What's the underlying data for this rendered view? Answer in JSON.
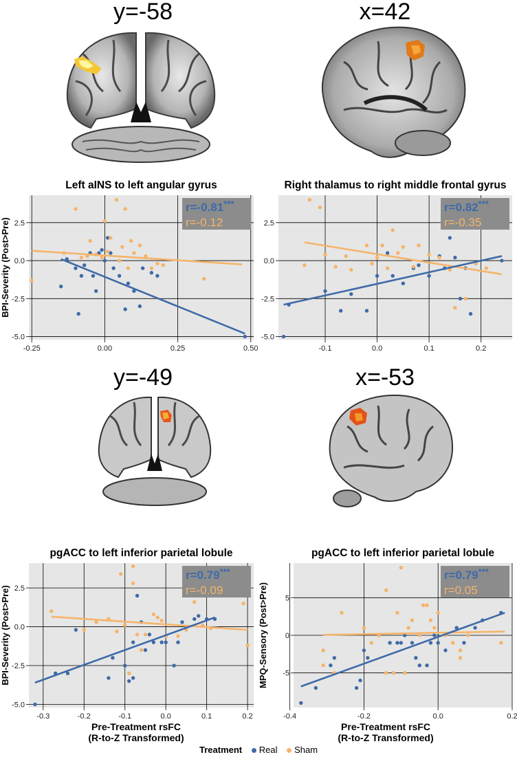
{
  "brain_labels": [
    "y=-58",
    "x=42",
    "y=-49",
    "x=-53"
  ],
  "colors": {
    "real": "#3e6aa8",
    "sham": "#f5b46a",
    "panel": "#e6e6e6",
    "stat_box": "#8c8c8c"
  },
  "xlabel_shared": [
    "Pre-Treatment rsFC",
    "(R-to-Z Transformed)"
  ],
  "legend": {
    "title": "Treatment",
    "items": [
      "Real",
      "Sham"
    ]
  },
  "chart_data": [
    {
      "type": "scatter",
      "title": "Left aINS to left angular gyrus",
      "ylabel": "BPI-Severity (Post>Pre)",
      "xlabel": "",
      "xlim": [
        -0.26,
        0.51
      ],
      "ylim": [
        -5.2,
        4.3
      ],
      "xticks": [
        -0.25,
        0,
        0.25,
        0.5
      ],
      "xtick_labels": [
        "-0.25",
        "0.00",
        "0.25",
        "0.50"
      ],
      "yticks": [
        -5,
        -2.5,
        0,
        2.5
      ],
      "ytick_labels": [
        "-5.0",
        "-2.5",
        "0.0",
        "2.5"
      ],
      "stats": [
        {
          "text": "r=-0.81",
          "stars": "***",
          "series": "Real"
        },
        {
          "text": "r=-0.12",
          "stars": "",
          "series": "Sham"
        }
      ],
      "series": [
        {
          "name": "Real",
          "points": [
            [
              -0.15,
              -1.7
            ],
            [
              -0.13,
              0.1
            ],
            [
              -0.1,
              -0.5
            ],
            [
              -0.09,
              -3.5
            ],
            [
              -0.08,
              -1.0
            ],
            [
              -0.07,
              -0.3
            ],
            [
              -0.05,
              0.5
            ],
            [
              -0.04,
              -1.0
            ],
            [
              -0.03,
              -2.0
            ],
            [
              -0.02,
              0.5
            ],
            [
              -0.01,
              0.7
            ],
            [
              0.0,
              0.0
            ],
            [
              0.01,
              1.5
            ],
            [
              0.02,
              0.5
            ],
            [
              0.03,
              -0.5
            ],
            [
              0.05,
              -1.0
            ],
            [
              0.07,
              -3.2
            ],
            [
              0.08,
              -1.5
            ],
            [
              0.1,
              -2.0
            ],
            [
              0.12,
              -3.0
            ],
            [
              0.13,
              -0.5
            ],
            [
              0.16,
              -0.8
            ],
            [
              0.18,
              -1.0
            ],
            [
              0.48,
              -5.0
            ]
          ],
          "fit": [
            [
              -0.15,
              0.1
            ],
            [
              0.48,
              -4.8
            ]
          ]
        },
        {
          "name": "Sham",
          "points": [
            [
              -0.25,
              -1.3
            ],
            [
              -0.14,
              0.5
            ],
            [
              -0.1,
              3.4
            ],
            [
              -0.08,
              0.2
            ],
            [
              -0.06,
              0.3
            ],
            [
              -0.05,
              1.3
            ],
            [
              -0.03,
              0.4
            ],
            [
              -0.01,
              0.2
            ],
            [
              0.0,
              2.6
            ],
            [
              0.01,
              0.6
            ],
            [
              0.02,
              1.5
            ],
            [
              0.04,
              4.0
            ],
            [
              0.05,
              0.0
            ],
            [
              0.06,
              0.9
            ],
            [
              0.07,
              3.4
            ],
            [
              0.08,
              -0.5
            ],
            [
              0.09,
              1.3
            ],
            [
              0.1,
              0.5
            ],
            [
              0.12,
              1.0
            ],
            [
              0.14,
              0.3
            ],
            [
              0.16,
              -0.5
            ],
            [
              0.18,
              -0.2
            ],
            [
              0.2,
              -0.3
            ],
            [
              0.34,
              -1.2
            ]
          ],
          "fit": [
            [
              -0.25,
              0.65
            ],
            [
              0.47,
              -0.25
            ]
          ]
        }
      ]
    },
    {
      "type": "scatter",
      "title": "Right thalamus to right middle frontal gyrus",
      "ylabel": "",
      "xlabel": "",
      "xlim": [
        -0.19,
        0.26
      ],
      "ylim": [
        -5.2,
        4.3
      ],
      "xticks": [
        -0.1,
        0,
        0.1,
        0.2
      ],
      "xtick_labels": [
        "-0.1",
        "0.0",
        "0.1",
        "0.2"
      ],
      "yticks": [
        -5,
        -2.5,
        0,
        2.5
      ],
      "ytick_labels": [
        "-5.0",
        "-2.5",
        "0.0",
        "2.5"
      ],
      "stats": [
        {
          "text": "r=0.82",
          "stars": "***",
          "series": "Real"
        },
        {
          "text": "r=-0.35",
          "stars": "",
          "series": "Sham"
        }
      ],
      "series": [
        {
          "name": "Real",
          "points": [
            [
              -0.18,
              -5.0
            ],
            [
              -0.17,
              -2.9
            ],
            [
              -0.1,
              -2.0
            ],
            [
              -0.07,
              -3.3
            ],
            [
              -0.05,
              -2.2
            ],
            [
              -0.02,
              -3.3
            ],
            [
              0.0,
              -1.0
            ],
            [
              0.02,
              0.5
            ],
            [
              0.03,
              -1.0
            ],
            [
              0.05,
              -1.5
            ],
            [
              0.07,
              -0.5
            ],
            [
              0.08,
              -0.3
            ],
            [
              0.1,
              -1.0
            ],
            [
              0.12,
              0.3
            ],
            [
              0.13,
              -0.5
            ],
            [
              0.14,
              1.5
            ],
            [
              0.15,
              0.2
            ],
            [
              0.16,
              -2.5
            ],
            [
              0.17,
              -0.5
            ],
            [
              0.18,
              -3.5
            ],
            [
              0.24,
              0.0
            ]
          ],
          "fit": [
            [
              -0.18,
              -2.9
            ],
            [
              0.24,
              0.3
            ]
          ]
        },
        {
          "name": "Sham",
          "points": [
            [
              -0.14,
              -0.3
            ],
            [
              -0.13,
              4.0
            ],
            [
              -0.11,
              3.5
            ],
            [
              -0.1,
              0.4
            ],
            [
              -0.08,
              -0.4
            ],
            [
              -0.06,
              0.3
            ],
            [
              -0.05,
              -0.6
            ],
            [
              -0.02,
              1.0
            ],
            [
              -0.01,
              -0.2
            ],
            [
              0.0,
              0.2
            ],
            [
              0.01,
              1.0
            ],
            [
              0.02,
              -0.5
            ],
            [
              0.03,
              2.0
            ],
            [
              0.04,
              0.5
            ],
            [
              0.05,
              0.9
            ],
            [
              0.07,
              -0.4
            ],
            [
              0.08,
              1.0
            ],
            [
              0.1,
              0.4
            ],
            [
              0.12,
              0.2
            ],
            [
              0.14,
              -0.6
            ],
            [
              0.15,
              -3.1
            ],
            [
              0.17,
              -2.5
            ],
            [
              0.19,
              -0.2
            ],
            [
              0.21,
              -0.5
            ]
          ],
          "fit": [
            [
              -0.14,
              1.2
            ],
            [
              0.24,
              -0.9
            ]
          ]
        }
      ]
    },
    {
      "type": "scatter",
      "title": "pgACC to left inferior parietal lobule",
      "ylabel": "BPI-Severity (Post>Pre)",
      "xlabel": "Pre-Treatment rsFC (R-to-Z Transformed)",
      "xlim": [
        -0.335,
        0.215
      ],
      "ylim": [
        -5.2,
        4.1
      ],
      "xticks": [
        -0.3,
        -0.2,
        -0.1,
        0,
        0.1,
        0.2
      ],
      "xtick_labels": [
        "-0.3",
        "-0.2",
        "-0.1",
        "0.0",
        "0.1",
        "0.2"
      ],
      "yticks": [
        -5,
        -2.5,
        0,
        2.5
      ],
      "ytick_labels": [
        "-5.0",
        "-2.5",
        "0.0",
        "2.5"
      ],
      "stats": [
        {
          "text": "r=0.79",
          "stars": "***",
          "series": "Real"
        },
        {
          "text": "r=-0.09",
          "stars": "",
          "series": "Sham"
        }
      ],
      "series": [
        {
          "name": "Real",
          "points": [
            [
              -0.32,
              -5.0
            ],
            [
              -0.27,
              -3.0
            ],
            [
              -0.24,
              -3.0
            ],
            [
              -0.22,
              -0.2
            ],
            [
              -0.14,
              -3.3
            ],
            [
              -0.13,
              -2.0
            ],
            [
              -0.1,
              -2.5
            ],
            [
              -0.09,
              -3.5
            ],
            [
              -0.08,
              -3.3
            ],
            [
              -0.08,
              -1.0
            ],
            [
              -0.07,
              2.0
            ],
            [
              -0.06,
              0.3
            ],
            [
              -0.05,
              -1.5
            ],
            [
              -0.04,
              -0.5
            ],
            [
              -0.03,
              -1.0
            ],
            [
              -0.01,
              -1.0
            ],
            [
              0.0,
              -1.0
            ],
            [
              0.02,
              -2.5
            ],
            [
              0.03,
              -1.0
            ],
            [
              0.04,
              0.3
            ],
            [
              0.05,
              0.0
            ],
            [
              0.07,
              0.5
            ],
            [
              0.08,
              0.7
            ],
            [
              0.1,
              0.5
            ],
            [
              0.12,
              0.5
            ]
          ],
          "fit": [
            [
              -0.32,
              -3.6
            ],
            [
              0.12,
              0.6
            ]
          ]
        },
        {
          "name": "Sham",
          "points": [
            [
              -0.28,
              1.0
            ],
            [
              -0.2,
              -0.2
            ],
            [
              -0.17,
              0.3
            ],
            [
              -0.14,
              0.5
            ],
            [
              -0.12,
              -0.3
            ],
            [
              -0.11,
              3.4
            ],
            [
              -0.1,
              0.1
            ],
            [
              -0.09,
              -3.0
            ],
            [
              -0.08,
              3.9
            ],
            [
              -0.08,
              2.8
            ],
            [
              -0.07,
              -0.5
            ],
            [
              -0.06,
              -1.5
            ],
            [
              -0.05,
              -0.5
            ],
            [
              -0.03,
              0.8
            ],
            [
              -0.02,
              0.6
            ],
            [
              -0.01,
              0.4
            ],
            [
              0.0,
              -0.6
            ],
            [
              0.03,
              -0.6
            ],
            [
              0.05,
              -0.2
            ],
            [
              0.07,
              1.6
            ],
            [
              0.09,
              0.1
            ],
            [
              0.11,
              -0.1
            ],
            [
              0.19,
              1.5
            ],
            [
              0.2,
              -1.2
            ]
          ],
          "fit": [
            [
              -0.28,
              0.65
            ],
            [
              0.2,
              -0.2
            ]
          ]
        }
      ]
    },
    {
      "type": "scatter",
      "title": "pgACC to left inferior parietal lobule",
      "ylabel": "MPQ-Sensory (Post>Pre)",
      "xlabel": "Pre-Treatment rsFC (R-to-Z Transformed)",
      "xlim": [
        -0.39,
        0.2
      ],
      "ylim": [
        -9.6,
        9.6
      ],
      "xticks": [
        -0.4,
        -0.2,
        0,
        0.2
      ],
      "xtick_labels": [
        "-0.4",
        "-0.2",
        "0.0",
        "0.2"
      ],
      "yticks": [
        -5,
        0,
        5
      ],
      "ytick_labels": [
        "-5",
        "0",
        "5"
      ],
      "stats": [
        {
          "text": "r=0.79",
          "stars": "***",
          "series": "Real"
        },
        {
          "text": "r=0.05",
          "stars": "",
          "series": "Sham"
        }
      ],
      "series": [
        {
          "name": "Real",
          "points": [
            [
              -0.37,
              -9.0
            ],
            [
              -0.33,
              -7.0
            ],
            [
              -0.29,
              -4.0
            ],
            [
              -0.28,
              -3.0
            ],
            [
              -0.22,
              -7.0
            ],
            [
              -0.21,
              -6.0
            ],
            [
              -0.2,
              -2.0
            ],
            [
              -0.19,
              -3.0
            ],
            [
              -0.16,
              0.0
            ],
            [
              -0.13,
              -1.0
            ],
            [
              -0.11,
              -1.0
            ],
            [
              -0.1,
              -1.0
            ],
            [
              -0.09,
              0.0
            ],
            [
              -0.07,
              -1.0
            ],
            [
              -0.06,
              -3.0
            ],
            [
              -0.05,
              -4.0
            ],
            [
              -0.03,
              -4.0
            ],
            [
              -0.02,
              -1.0
            ],
            [
              -0.01,
              0.0
            ],
            [
              0.0,
              -1.0
            ],
            [
              0.02,
              -2.0
            ],
            [
              0.05,
              1.0
            ],
            [
              0.07,
              -1.0
            ],
            [
              0.1,
              1.0
            ],
            [
              0.12,
              2.0
            ],
            [
              0.17,
              3.0
            ]
          ],
          "fit": [
            [
              -0.37,
              -6.8
            ],
            [
              0.18,
              3.0
            ]
          ]
        },
        {
          "name": "Sham",
          "points": [
            [
              -0.31,
              -2.0
            ],
            [
              -0.31,
              -4.0
            ],
            [
              -0.28,
              -5.0
            ],
            [
              -0.26,
              3.0
            ],
            [
              -0.2,
              1.0
            ],
            [
              -0.18,
              -1.0
            ],
            [
              -0.16,
              0.0
            ],
            [
              -0.14,
              -5.0
            ],
            [
              -0.14,
              6.0
            ],
            [
              -0.12,
              -5.0
            ],
            [
              -0.11,
              3.0
            ],
            [
              -0.1,
              9.0
            ],
            [
              -0.09,
              -5.0
            ],
            [
              -0.08,
              1.0
            ],
            [
              -0.07,
              2.0
            ],
            [
              -0.05,
              0.0
            ],
            [
              -0.04,
              4.0
            ],
            [
              -0.03,
              4.0
            ],
            [
              -0.02,
              2.0
            ],
            [
              -0.01,
              1.0
            ],
            [
              0.0,
              3.0
            ],
            [
              0.02,
              0.0
            ],
            [
              0.04,
              -1.0
            ],
            [
              0.06,
              -2.0
            ],
            [
              0.06,
              -3.0
            ],
            [
              0.08,
              0.0
            ],
            [
              0.17,
              -1.0
            ]
          ],
          "fit": [
            [
              -0.31,
              0.05
            ],
            [
              0.18,
              0.5
            ]
          ]
        }
      ]
    }
  ]
}
